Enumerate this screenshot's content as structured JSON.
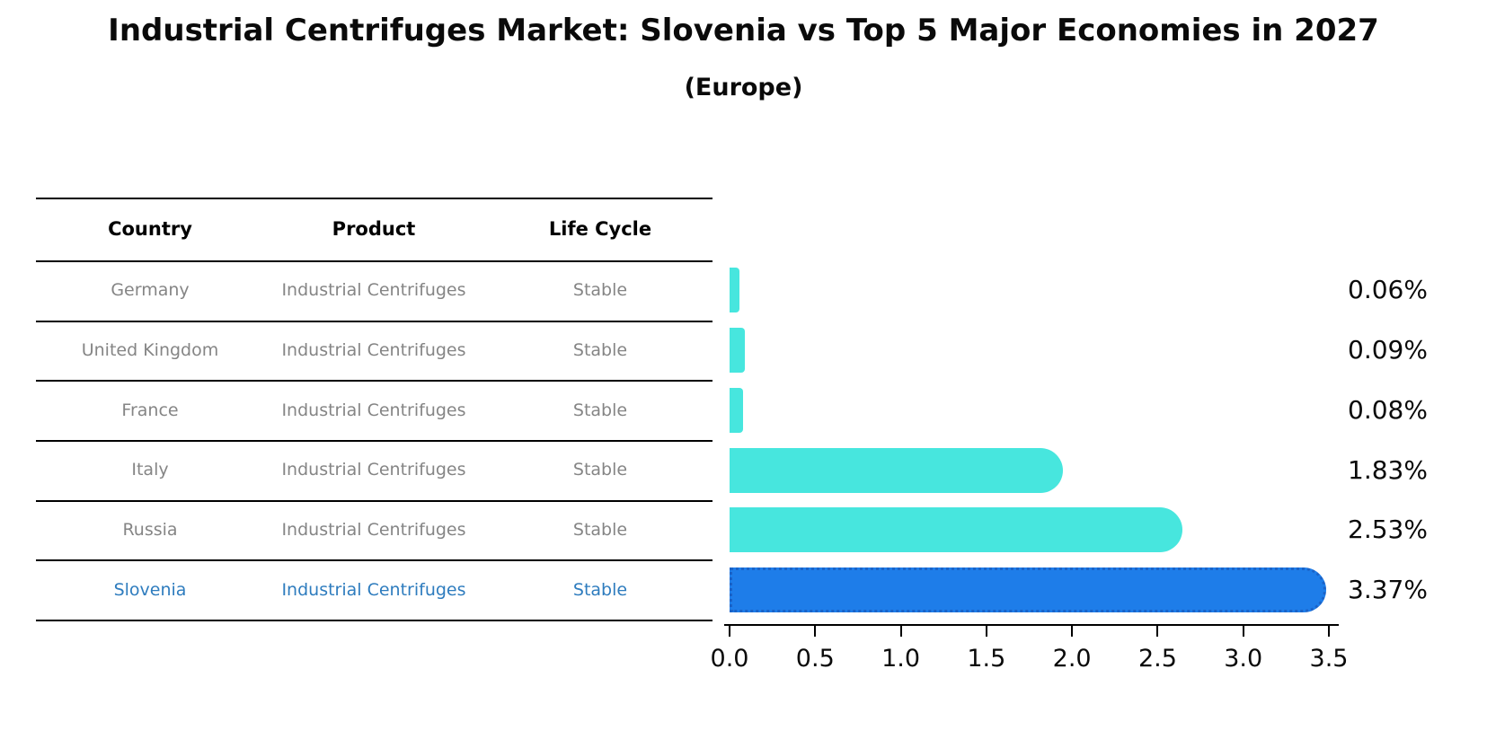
{
  "title": "Industrial Centrifuges Market: Slovenia vs Top 5 Major Economies in 2027",
  "subtitle": "(Europe)",
  "table": {
    "headers": {
      "country": "Country",
      "product": "Product",
      "life_cycle": "Life Cycle"
    },
    "rows": [
      {
        "country": "Germany",
        "product": "Industrial Centrifuges",
        "life_cycle": "Stable",
        "highlighted": false
      },
      {
        "country": "United Kingdom",
        "product": "Industrial Centrifuges",
        "life_cycle": "Stable",
        "highlighted": false
      },
      {
        "country": "France",
        "product": "Industrial Centrifuges",
        "life_cycle": "Stable",
        "highlighted": false
      },
      {
        "country": "Italy",
        "product": "Industrial Centrifuges",
        "life_cycle": "Stable",
        "highlighted": false
      },
      {
        "country": "Russia",
        "product": "Industrial Centrifuges",
        "life_cycle": "Stable",
        "highlighted": false
      },
      {
        "country": "Slovenia",
        "product": "Industrial Centrifuges",
        "life_cycle": "Stable",
        "highlighted": true
      }
    ]
  },
  "chart_data": {
    "type": "bar",
    "orientation": "horizontal",
    "title": "Industrial Centrifuges Market: Slovenia vs Top 5 Major Economies in 2027 (Europe)",
    "categories": [
      "Germany",
      "United Kingdom",
      "France",
      "Italy",
      "Russia",
      "Slovenia"
    ],
    "values": [
      0.06,
      0.09,
      0.08,
      1.83,
      2.53,
      3.37
    ],
    "value_labels": [
      "0.06%",
      "0.09%",
      "0.08%",
      "1.83%",
      "2.53%",
      "3.37%"
    ],
    "x_ticks": [
      "0.0",
      "0.5",
      "1.0",
      "1.5",
      "2.0",
      "2.5",
      "3.0",
      "3.5"
    ],
    "xlim": [
      0,
      3.5
    ],
    "grid": false,
    "legend": false,
    "highlight_index": 5
  },
  "colors": {
    "bar_turquoise": "#47E6DE",
    "bar_highlight_blue": "#1E7DE9",
    "bar_highlight_edge": "#1A63C8",
    "highlight_text_blue": "#2E7CBE",
    "muted_text_gray": "#858585",
    "text_black": "#0a0a0a"
  }
}
